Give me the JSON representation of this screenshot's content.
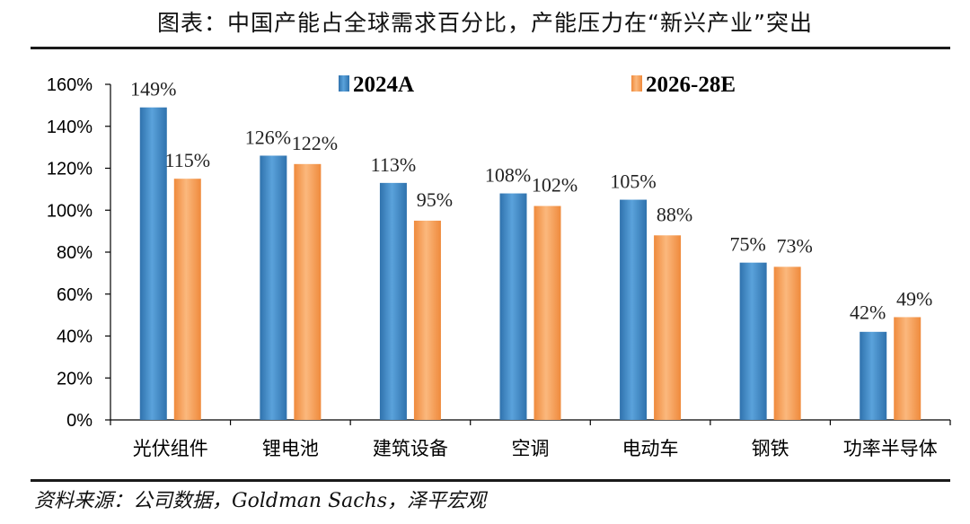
{
  "title": "图表：中国产能占全球需求百分比，产能压力在“新兴产业”突出",
  "source": "资料来源：公司数据，Goldman Sachs，泽平宏观",
  "colors": {
    "series_2024": "#3d87c4",
    "series_2026": "#f59d55",
    "axis": "#000000",
    "rule": "#1a1a1a"
  },
  "chart_data": {
    "type": "bar",
    "title": "中国产能占全球需求百分比",
    "categories": [
      "光伏组件",
      "锂电池",
      "建筑设备",
      "空调",
      "电动车",
      "钢铁",
      "功率半导体"
    ],
    "series": [
      {
        "name": "2024A",
        "values": [
          149,
          126,
          113,
          108,
          105,
          75,
          42
        ]
      },
      {
        "name": "2026-28E",
        "values": [
          115,
          122,
          95,
          102,
          88,
          73,
          49
        ]
      }
    ],
    "value_labels": [
      [
        "149%",
        "126%",
        "113%",
        "108%",
        "105%",
        "75%",
        "42%"
      ],
      [
        "115%",
        "122%",
        "95%",
        "102%",
        "88%",
        "73%",
        "49%"
      ]
    ],
    "ylim": [
      0,
      160
    ],
    "yticks": [
      0,
      20,
      40,
      60,
      80,
      100,
      120,
      140,
      160
    ],
    "ytick_labels": [
      "0%",
      "20%",
      "40%",
      "60%",
      "80%",
      "100%",
      "120%",
      "140%",
      "160%"
    ],
    "xlabel": "",
    "ylabel": "",
    "legend_position": "top",
    "grid": false
  }
}
